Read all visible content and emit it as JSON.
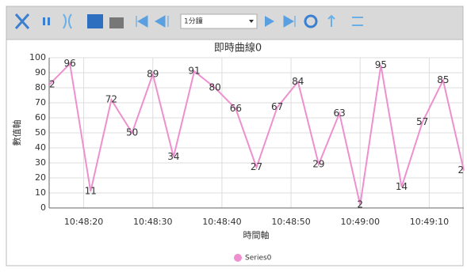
{
  "toolbar": {
    "interval": "1分鐘"
  },
  "chart_data": {
    "type": "line",
    "title": "即時曲線0",
    "y_label": "數值軸",
    "x_label": "時間軸",
    "x": [
      "10:48:15",
      "10:48:18",
      "10:48:21",
      "10:48:24",
      "10:48:27",
      "10:48:30",
      "10:48:33",
      "10:48:36",
      "10:48:39",
      "10:48:42",
      "10:48:45",
      "10:48:48",
      "10:48:51",
      "10:48:54",
      "10:48:57",
      "10:49:00",
      "10:49:03",
      "10:49:06",
      "10:49:09",
      "10:49:12",
      "10:49:15"
    ],
    "series": [
      {
        "name": "Series0",
        "color": "#ee8fcf",
        "values": [
          82,
          96,
          11,
          72,
          50,
          89,
          34,
          91,
          80,
          66,
          27,
          67,
          84,
          29,
          63,
          2,
          95,
          14,
          57,
          85,
          25
        ]
      }
    ],
    "xlim": [
      "10:48:15",
      "10:49:15"
    ],
    "xticks": [
      "10:48:20",
      "10:48:30",
      "10:48:40",
      "10:48:50",
      "10:49:00",
      "10:49:10"
    ],
    "ylim": [
      0,
      100
    ],
    "yticks": [
      0,
      10,
      20,
      30,
      40,
      50,
      60,
      70,
      80,
      90,
      100
    ],
    "grid": true
  }
}
